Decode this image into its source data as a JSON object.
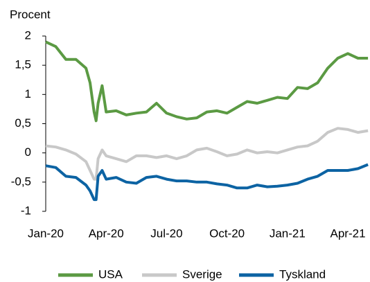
{
  "chart_data": {
    "type": "line",
    "y_label": "Procent",
    "x": [
      0,
      0.5,
      1,
      1.5,
      2,
      2.2,
      2.4,
      2.5,
      2.6,
      2.8,
      3,
      3.5,
      4,
      4.5,
      5,
      5.5,
      6,
      6.5,
      7,
      7.5,
      8,
      8.5,
      9,
      9.5,
      10,
      10.5,
      11,
      11.5,
      12,
      12.5,
      13,
      13.5,
      14,
      14.5,
      15,
      15.5,
      16
    ],
    "xlim": [
      0,
      16.1
    ],
    "xticks": [
      {
        "value": 0,
        "label": "Jan-20"
      },
      {
        "value": 3,
        "label": "Apr-20"
      },
      {
        "value": 6,
        "label": "Jul-20"
      },
      {
        "value": 9,
        "label": "Oct-20"
      },
      {
        "value": 12,
        "label": "Jan-21"
      },
      {
        "value": 15,
        "label": "Apr-21"
      }
    ],
    "ylim": [
      -1,
      2
    ],
    "yticks": [
      2,
      {
        "value": 1.5,
        "label": "1,5"
      },
      1,
      {
        "value": 0.5,
        "label": "0,5"
      },
      0,
      {
        "value": -0.5,
        "label": "-0,5"
      },
      -1
    ],
    "legend": "bottom",
    "series": [
      {
        "name": "USA",
        "color": "#5b9a43",
        "values": [
          1.9,
          1.82,
          1.6,
          1.6,
          1.45,
          1.2,
          0.7,
          0.55,
          0.85,
          1.15,
          0.7,
          0.72,
          0.65,
          0.68,
          0.7,
          0.85,
          0.68,
          0.62,
          0.58,
          0.6,
          0.7,
          0.72,
          0.68,
          0.78,
          0.88,
          0.85,
          0.9,
          0.95,
          0.93,
          1.12,
          1.1,
          1.2,
          1.45,
          1.62,
          1.7,
          1.62,
          1.62
        ]
      },
      {
        "name": "Sverige",
        "color": "#c8c8c8",
        "values": [
          0.12,
          0.1,
          0.05,
          -0.02,
          -0.15,
          -0.3,
          -0.45,
          -0.45,
          -0.1,
          0.05,
          -0.05,
          -0.1,
          -0.15,
          -0.05,
          -0.05,
          -0.08,
          -0.05,
          -0.1,
          -0.05,
          0.05,
          0.08,
          0.02,
          -0.05,
          -0.02,
          0.05,
          0.0,
          0.02,
          0.0,
          0.05,
          0.1,
          0.12,
          0.2,
          0.35,
          0.42,
          0.4,
          0.35,
          0.38
        ]
      },
      {
        "name": "Tyskland",
        "color": "#0c63a3",
        "values": [
          -0.22,
          -0.25,
          -0.4,
          -0.42,
          -0.55,
          -0.65,
          -0.8,
          -0.8,
          -0.4,
          -0.3,
          -0.45,
          -0.42,
          -0.5,
          -0.52,
          -0.42,
          -0.4,
          -0.45,
          -0.48,
          -0.48,
          -0.5,
          -0.5,
          -0.53,
          -0.55,
          -0.6,
          -0.6,
          -0.55,
          -0.58,
          -0.57,
          -0.55,
          -0.52,
          -0.45,
          -0.4,
          -0.3,
          -0.3,
          -0.3,
          -0.27,
          -0.2
        ]
      }
    ]
  }
}
